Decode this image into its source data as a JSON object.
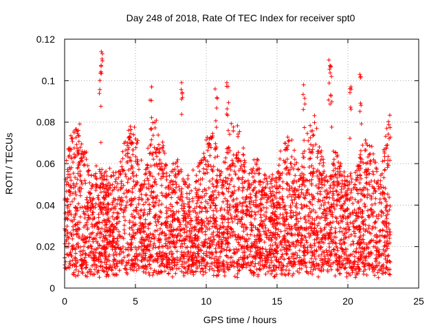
{
  "chart_data": {
    "type": "scatter",
    "title": "Day 248 of 2018, Rate Of TEC Index for receiver spt0",
    "xlabel": "GPS time / hours",
    "ylabel": "ROTI / TECUs",
    "xlim": [
      0,
      25
    ],
    "ylim": [
      0,
      0.12
    ],
    "xticks": [
      0,
      5,
      10,
      15,
      20,
      25
    ],
    "xtick_labels": [
      "0",
      "5",
      "10",
      "15",
      "20",
      "25"
    ],
    "yticks": [
      0,
      0.02,
      0.04,
      0.06,
      0.08,
      0.1,
      0.12
    ],
    "ytick_labels": [
      "0",
      "0.02",
      "0.04",
      "0.06",
      "0.08",
      "0.1",
      "0.12"
    ],
    "grid": true,
    "marker": "+",
    "series": [
      {
        "name": "ROTI",
        "color": "#ff0000",
        "x_range_hours": [
          0,
          23
        ],
        "typical_range": [
          0.005,
          0.08
        ],
        "peaks": [
          {
            "x": 2.6,
            "y": 0.114
          },
          {
            "x": 2.5,
            "y": 0.107
          },
          {
            "x": 6.1,
            "y": 0.097
          },
          {
            "x": 8.3,
            "y": 0.099
          },
          {
            "x": 10.7,
            "y": 0.096
          },
          {
            "x": 11.5,
            "y": 0.099
          },
          {
            "x": 16.9,
            "y": 0.098
          },
          {
            "x": 18.7,
            "y": 0.11
          },
          {
            "x": 18.8,
            "y": 0.107
          },
          {
            "x": 20.9,
            "y": 0.103
          },
          {
            "x": 20.2,
            "y": 0.097
          }
        ]
      }
    ]
  }
}
